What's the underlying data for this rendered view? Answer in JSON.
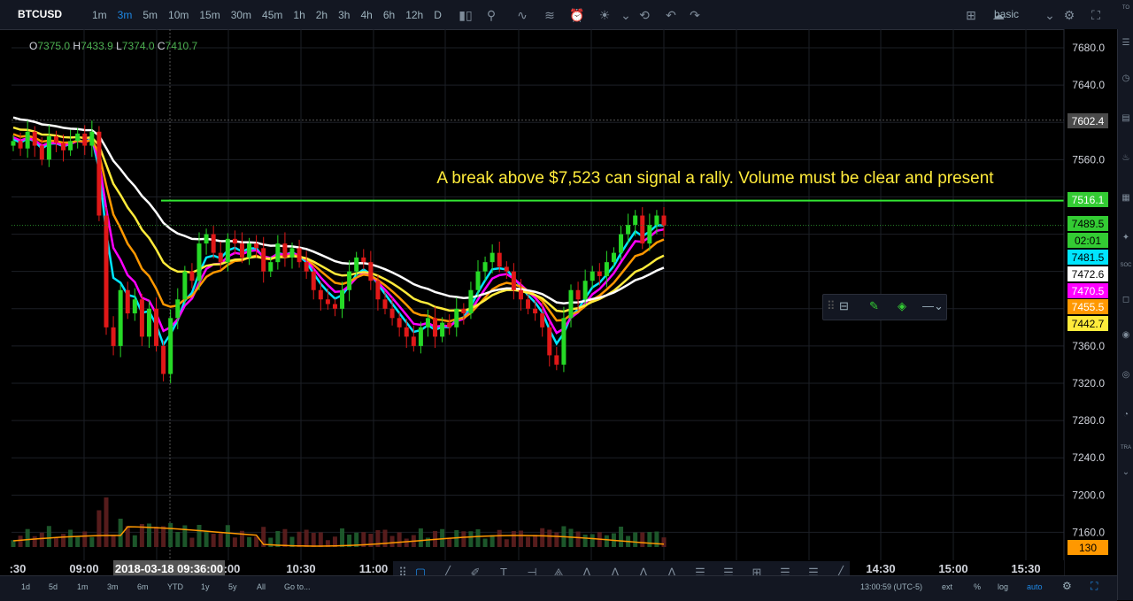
{
  "toolbar": {
    "symbol": "BTCUSD",
    "intervals": [
      "1m",
      "3m",
      "5m",
      "10m",
      "15m",
      "30m",
      "45m",
      "1h",
      "2h",
      "3h",
      "4h",
      "6h",
      "12h",
      "D"
    ],
    "active_interval": "3m",
    "layout_label": "basic"
  },
  "ohlc": {
    "o_label": "O",
    "o": "7375.0",
    "h_label": "H",
    "h": "7433.9",
    "l_label": "L",
    "l": "7374.0",
    "c_label": "C",
    "c": "7410.7"
  },
  "annotation_text": "A break above $7,523 can signal a rally. Volume must be clear and present",
  "price_axis": {
    "ticks": [
      "7680.0",
      "7640.0",
      "7560.0",
      "7360.0",
      "7320.0",
      "7280.0",
      "7240.0",
      "7200.0",
      "7160.0"
    ],
    "badges": [
      {
        "label": "7602.4",
        "color": "#4a4a4a",
        "text_color": "#ffffff"
      },
      {
        "label": "7516.1",
        "color": "#33cc33",
        "text_color": "#ffffff"
      },
      {
        "label": "7489.5",
        "color": "#33cc33",
        "text_color": "#000000"
      },
      {
        "label": "02:01",
        "color": "#33cc33",
        "text_color": "#000000"
      },
      {
        "label": "7481.5",
        "color": "#00e5ff",
        "text_color": "#000000"
      },
      {
        "label": "7472.6",
        "color": "#ffffff",
        "text_color": "#000000"
      },
      {
        "label": "7470.5",
        "color": "#ff00ff",
        "text_color": "#ffffff"
      },
      {
        "label": "7455.5",
        "color": "#ff9800",
        "text_color": "#ffffff"
      },
      {
        "label": "7442.7",
        "color": "#ffeb3b",
        "text_color": "#000000"
      },
      {
        "label": "130",
        "color": "#ff9800",
        "text_color": "#000000"
      }
    ]
  },
  "time_axis": {
    "ticks": [
      ":30",
      "09:00",
      ":00",
      "10:30",
      "11:00",
      "14:30",
      "15:00",
      "15:30"
    ],
    "crosshair_label": "2018-03-18 09:36:00"
  },
  "ranges": [
    "1d",
    "5d",
    "1m",
    "3m",
    "6m",
    "YTD",
    "1y",
    "5y",
    "All",
    "Go to..."
  ],
  "status": {
    "clock": "13:00:59 (UTC-5)",
    "ext": "ext",
    "percent": "%",
    "log": "log",
    "auto": "auto"
  },
  "right_panel_labels": [
    "TO",
    "SOC",
    "TRA"
  ],
  "colors": {
    "up": "#26d926",
    "down": "#e01818",
    "resistance": "#33e633",
    "ma_white": "#ffffff",
    "ma_yellow": "#ffeb3b",
    "ma_orange": "#ff9800",
    "ma_magenta": "#ff00ff",
    "ma_cyan": "#00e5ff"
  },
  "chart_data": {
    "type": "candlestick",
    "symbol": "BTCUSD",
    "interval": "3m",
    "ylim": [
      7130,
      7700
    ],
    "resistance_level": 7516.1,
    "closes": [
      7580,
      7572,
      7590,
      7575,
      7560,
      7585,
      7578,
      7570,
      7580,
      7588,
      7575,
      7590,
      7500,
      7380,
      7360,
      7420,
      7395,
      7410,
      7370,
      7400,
      7360,
      7330,
      7390,
      7410,
      7440,
      7430,
      7470,
      7480,
      7460,
      7450,
      7475,
      7470,
      7455,
      7470,
      7465,
      7440,
      7450,
      7470,
      7455,
      7465,
      7450,
      7440,
      7420,
      7410,
      7405,
      7400,
      7420,
      7440,
      7455,
      7450,
      7430,
      7410,
      7400,
      7390,
      7380,
      7370,
      7360,
      7380,
      7390,
      7370,
      7385,
      7380,
      7400,
      7395,
      7420,
      7440,
      7450,
      7460,
      7445,
      7440,
      7420,
      7410,
      7400,
      7395,
      7380,
      7350,
      7340,
      7390,
      7420,
      7410,
      7430,
      7440,
      7435,
      7450,
      7460,
      7480,
      7490,
      7500,
      7470,
      7490,
      7500,
      7489
    ],
    "volume_max_label": "130"
  }
}
